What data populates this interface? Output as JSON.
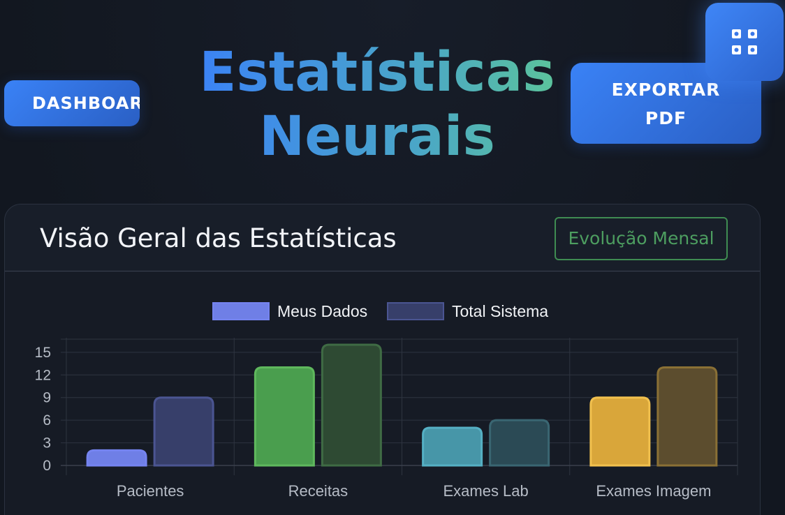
{
  "header": {
    "dashboard_label": "DASHBOARD",
    "title_line1": "Estatísticas",
    "title_line2": "Neurais",
    "export_line1": "EXPORTAR",
    "export_line2": "PDF",
    "menu_icon": "grid-icon"
  },
  "card": {
    "title": "Visão Geral das Estatísticas",
    "action_label": "Evolução Mensal"
  },
  "colors": {
    "accent": "#3b82f6",
    "mine": [
      "#6f7fe6",
      "#4a9e4e",
      "#4796a8",
      "#d9a63a"
    ],
    "mine_border": [
      "#7584f0",
      "#5fb85d",
      "#55b0c4",
      "#f2c14e"
    ],
    "total": [
      "#373f6a",
      "#2e4a33",
      "#2b4a55",
      "#5c4d2e"
    ],
    "total_border": [
      "#4b5592",
      "#3f6b44",
      "#3a6672",
      "#8a7035"
    ]
  },
  "chart_data": {
    "type": "bar",
    "categories": [
      "Pacientes",
      "Receitas",
      "Exames Lab",
      "Exames Imagem"
    ],
    "series": [
      {
        "name": "Meus Dados",
        "values": [
          2,
          13,
          5,
          9
        ]
      },
      {
        "name": "Total Sistema",
        "values": [
          9,
          16,
          6,
          13
        ]
      }
    ],
    "yticks": [
      0,
      3,
      6,
      9,
      12,
      15
    ],
    "ylim": [
      0,
      16
    ],
    "grid": true,
    "legend": "top-center"
  }
}
